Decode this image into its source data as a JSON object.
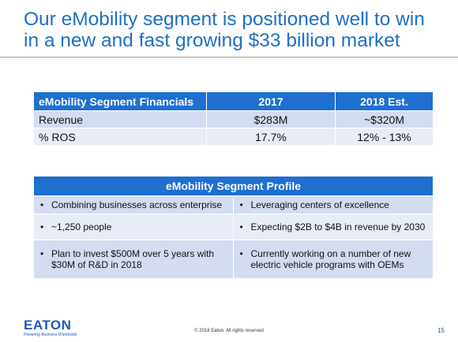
{
  "title": {
    "line1": "Our eMobility segment is positioned well to win",
    "line2": "in a new and fast growing $33 billion market"
  },
  "financials": {
    "headers": [
      "eMobility Segment Financials",
      "2017",
      "2018 Est."
    ],
    "rows": [
      [
        "Revenue",
        "$283M",
        "~$320M"
      ],
      [
        "% ROS",
        "17.7%",
        "12% - 13%"
      ]
    ]
  },
  "profile": {
    "header": "eMobility Segment Profile",
    "bullet": "•",
    "rows": [
      [
        "Combining businesses across enterprise",
        "Leveraging centers of excellence"
      ],
      [
        "~1,250 people",
        "Expecting $2B to $4B in revenue by 2030"
      ],
      [
        "Plan to invest $500M over 5 years with $30M of R&D in 2018",
        "Currently working on a number of new electric vehicle programs with OEMs"
      ]
    ]
  },
  "footer": {
    "logo": "EATON",
    "tagline": "Powering Business Worldwide",
    "copyright": "© 2018 Eaton. All rights reserved",
    "page": "15"
  },
  "colors": {
    "title": "#1f6fc5",
    "header_bg": "#1e6fd0",
    "row_dark": "#d3dcf0",
    "row_light": "#e8ecf7",
    "logo": "#1e5bb4"
  }
}
